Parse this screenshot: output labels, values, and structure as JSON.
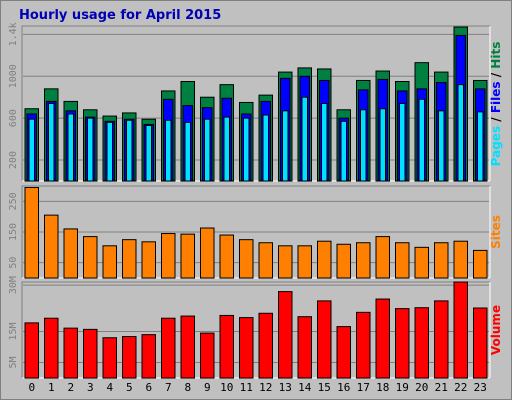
{
  "chart_data": [
    {
      "type": "bar",
      "title": "Hourly usage for April 2015",
      "categories": [
        "0",
        "1",
        "2",
        "3",
        "4",
        "5",
        "6",
        "7",
        "8",
        "9",
        "10",
        "11",
        "12",
        "13",
        "14",
        "15",
        "16",
        "17",
        "18",
        "19",
        "20",
        "21",
        "22",
        "23"
      ],
      "ylim": [
        0,
        1480
      ],
      "yticks": [
        200,
        600,
        1000,
        1400
      ],
      "ytick_labels": [
        "200",
        "600",
        "1000",
        "1.4k"
      ],
      "right_label_parts": [
        "Pages",
        " / ",
        "Files",
        " / ",
        "Hits"
      ],
      "series": [
        {
          "name": "Hits",
          "color": "#008040",
          "values": [
            690,
            880,
            760,
            680,
            620,
            650,
            590,
            860,
            950,
            800,
            920,
            750,
            820,
            1040,
            1080,
            1070,
            680,
            960,
            1050,
            950,
            1130,
            1040,
            1470,
            960
          ]
        },
        {
          "name": "Files",
          "color": "#0000ff",
          "values": [
            640,
            760,
            670,
            610,
            570,
            590,
            540,
            780,
            720,
            700,
            790,
            640,
            760,
            980,
            1000,
            960,
            600,
            870,
            970,
            860,
            880,
            940,
            1390,
            880
          ]
        },
        {
          "name": "Pages",
          "color": "#00e0ff",
          "values": [
            590,
            740,
            640,
            600,
            560,
            580,
            530,
            580,
            560,
            590,
            610,
            600,
            630,
            670,
            800,
            740,
            570,
            680,
            690,
            740,
            780,
            670,
            920,
            660
          ]
        }
      ]
    },
    {
      "type": "bar",
      "categories": [
        "0",
        "1",
        "2",
        "3",
        "4",
        "5",
        "6",
        "7",
        "8",
        "9",
        "10",
        "11",
        "12",
        "13",
        "14",
        "15",
        "16",
        "17",
        "18",
        "19",
        "20",
        "21",
        "22",
        "23"
      ],
      "ylim": [
        0,
        300
      ],
      "yticks": [
        50,
        150,
        250
      ],
      "ytick_labels": [
        "50",
        "150",
        "250"
      ],
      "right_label_parts": [
        "Sites"
      ],
      "series": [
        {
          "name": "Sites",
          "color": "#ff8000",
          "values": [
            295,
            205,
            160,
            135,
            105,
            125,
            118,
            145,
            143,
            163,
            140,
            125,
            115,
            105,
            105,
            120,
            110,
            115,
            135,
            115,
            100,
            115,
            120,
            90
          ]
        }
      ]
    },
    {
      "type": "bar",
      "categories": [
        "0",
        "1",
        "2",
        "3",
        "4",
        "5",
        "6",
        "7",
        "8",
        "9",
        "10",
        "11",
        "12",
        "13",
        "14",
        "15",
        "16",
        "17",
        "18",
        "19",
        "20",
        "21",
        "22",
        "23"
      ],
      "ylim": [
        0,
        31000000
      ],
      "yticks": [
        5000000,
        15000000,
        30000000
      ],
      "ytick_labels": [
        "5M",
        "15M",
        "30M"
      ],
      "right_label_parts": [
        "Volume"
      ],
      "series": [
        {
          "name": "Volume",
          "color": "#ff0000",
          "values": [
            17800000,
            19300000,
            16100000,
            15700000,
            13000000,
            13400000,
            14000000,
            19300000,
            20000000,
            14500000,
            20200000,
            19500000,
            20900000,
            27900000,
            19800000,
            24900000,
            16600000,
            21200000,
            25500000,
            22400000,
            22700000,
            24900000,
            31000000,
            22600000
          ]
        }
      ]
    }
  ],
  "colors": {
    "page_background": "#ffffff",
    "frame": "#c0c0c0",
    "plot_background": "#c0c0c0",
    "title": "#0000b4",
    "pages": "#00e0ff",
    "files": "#0000ff",
    "hits": "#008040",
    "sites": "#ff8000",
    "volume": "#ff0000"
  }
}
